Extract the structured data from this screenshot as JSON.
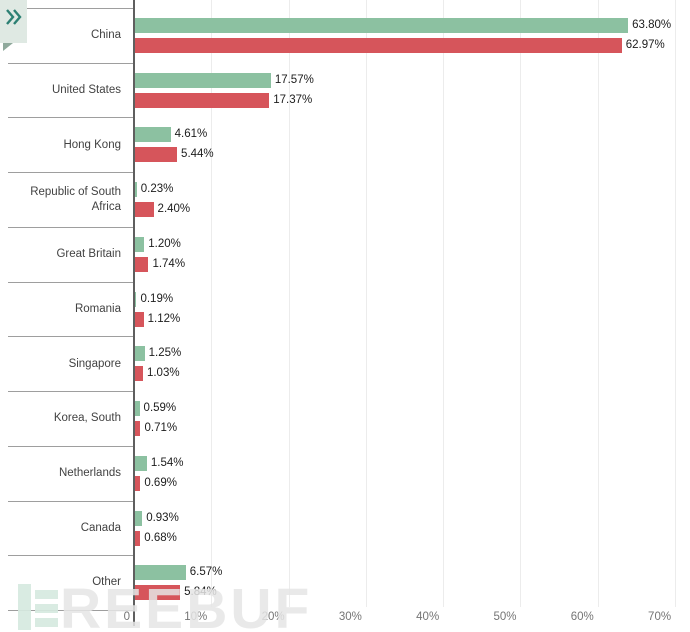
{
  "sidebar_toggle": {
    "icon": "double-chevron-right-icon"
  },
  "watermark": {
    "text": "REEBUF",
    "logo": "freebuf-logo"
  },
  "colors": {
    "series_green": "#8cc1a1",
    "series_red": "#d6555b",
    "axis_line": "#5f5f5f",
    "separator": "#9e9e9e",
    "gridline": "#ececec",
    "ribbon_bg": "#dfe9e3",
    "ribbon_chevron": "#2c8073",
    "watermark_logo": "#d6e9de"
  },
  "chart_data": {
    "type": "bar",
    "orientation": "horizontal",
    "title": "",
    "xlabel": "",
    "ylabel": "",
    "categories": [
      "China",
      "United States",
      "Hong Kong",
      "Republic of South Africa",
      "Great Britain",
      "Romania",
      "Singapore",
      "Korea, South",
      "Netherlands",
      "Canada",
      "Other"
    ],
    "series": [
      {
        "name": "green",
        "color": "#8cc1a1",
        "values": [
          63.8,
          17.57,
          4.61,
          0.23,
          1.2,
          0.19,
          1.25,
          0.59,
          1.54,
          0.93,
          6.57
        ]
      },
      {
        "name": "red",
        "color": "#d6555b",
        "values": [
          62.97,
          17.37,
          5.44,
          2.4,
          1.74,
          1.12,
          1.03,
          0.71,
          0.69,
          0.68,
          5.84
        ]
      }
    ],
    "value_suffix": "%",
    "xlim": [
      0,
      71.8
    ],
    "tick_values": [
      0,
      10,
      20,
      30,
      40,
      50,
      60,
      70
    ],
    "tick_labels": [
      "0",
      "10%",
      "20%",
      "30%",
      "40%",
      "50%",
      "60%",
      "70%"
    ],
    "grid": true,
    "legend": "none"
  }
}
